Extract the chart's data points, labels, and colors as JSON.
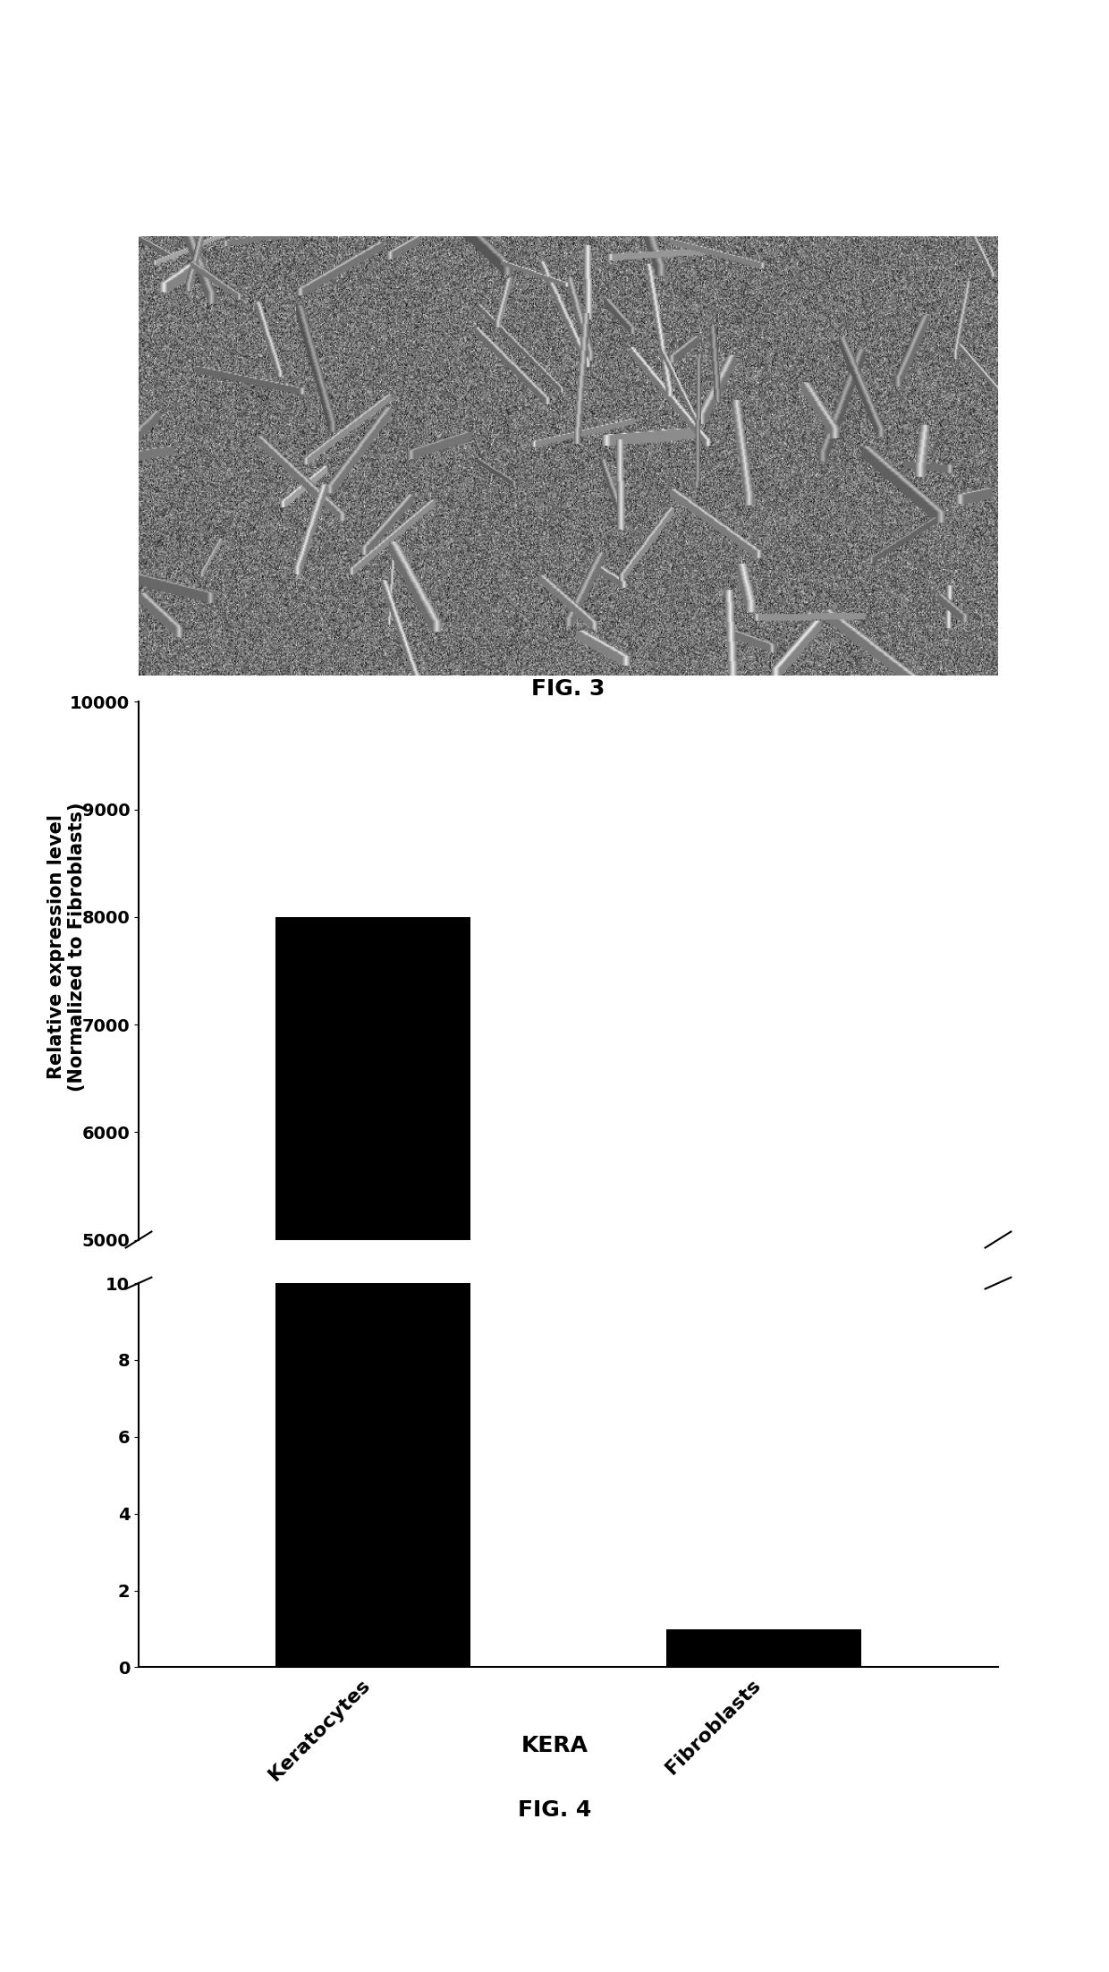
{
  "fig3_caption": "FIG. 3",
  "fig4_caption": "FIG. 4",
  "kera_label": "KERA",
  "categories": [
    "Keratocytes",
    "Fibroblasts"
  ],
  "values_lower": [
    10,
    1
  ],
  "values_upper": [
    8000,
    0
  ],
  "bar_color": "#000000",
  "ylabel": "Relative expression level\n(Normalized to Fibroblasts)",
  "ylim_lower": [
    0,
    10
  ],
  "ylim_upper": [
    5000,
    10000
  ],
  "yticks_lower": [
    0,
    2,
    4,
    6,
    8,
    10
  ],
  "yticks_upper": [
    5000,
    6000,
    7000,
    8000,
    9000,
    10000
  ],
  "background_color": "#ffffff",
  "bar_width": 0.5,
  "fig_width": 12.4,
  "fig_height": 22.04
}
